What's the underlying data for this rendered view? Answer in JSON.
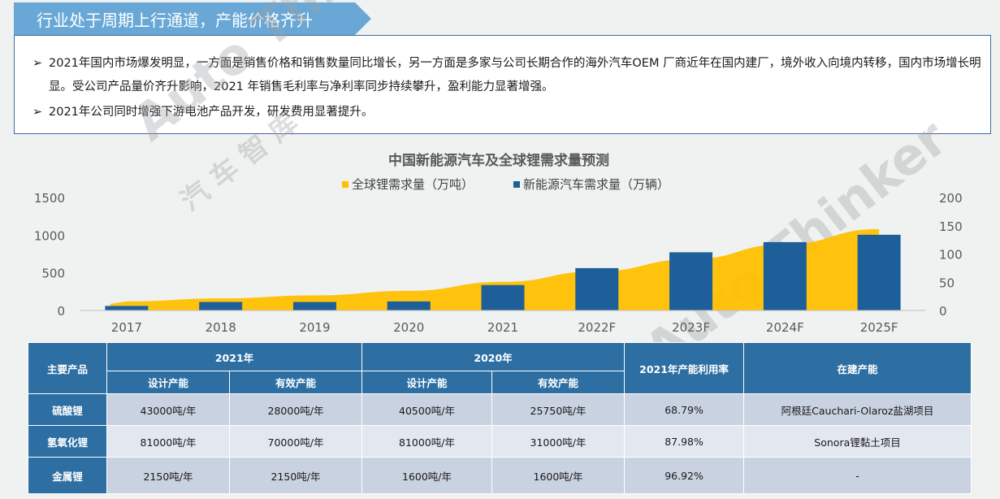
{
  "banner": {
    "title": "行业处于周期上行通道，产能价格齐升"
  },
  "bullets": [
    "2021年国内市场爆发明显，一方面是销售价格和销售数量同比增长，另一方面是多家与公司长期合作的海外汽车OEM 厂商近年在国内建厂，境外收入向境内转移，国内市场增长明显。受公司产品量价齐升影响，2021 年销售毛利率与净利率同步持续攀升，盈利能力显著增强。",
    "2021年公司同时增强下游电池产品开发，研发费用显著提升。"
  ],
  "bullet_arrow": "➢",
  "watermark": {
    "brand": "Auto Thinker",
    "cn": "汽 车 智 库"
  },
  "chart_data": {
    "type": "bar",
    "title": "中国新能源汽车及全球锂需求量预测",
    "categories": [
      "2017",
      "2018",
      "2019",
      "2020",
      "2021",
      "2022F",
      "2023F",
      "2024F",
      "2025F"
    ],
    "series": [
      {
        "name": "全球锂需求量（万吨）",
        "kind": "area",
        "axis": "left",
        "color": "#ffc000",
        "values": [
          120,
          160,
          200,
          260,
          380,
          520,
          680,
          880,
          1080
        ]
      },
      {
        "name": "新能源汽车需求量（万辆）",
        "kind": "bar",
        "axis": "right",
        "color": "#1f5f99",
        "values": [
          8,
          15,
          15,
          16,
          45,
          75,
          103,
          121,
          134
        ]
      }
    ],
    "left_axis": {
      "min": 0,
      "max": 1500,
      "ticks": [
        "0",
        "500",
        "1000",
        "1500"
      ]
    },
    "right_axis": {
      "min": 0,
      "max": 200,
      "ticks": [
        "0",
        "50",
        "100",
        "150",
        "200"
      ]
    },
    "legend_position": "top-center",
    "grid": false
  },
  "table": {
    "headers": {
      "product": "主要产品",
      "y2021": "2021年",
      "y2020": "2020年",
      "design": "设计产能",
      "effective": "有效产能",
      "utilization": "2021年产能利用率",
      "building": "在建产能"
    },
    "rows": [
      {
        "product": "硫酸锂",
        "d2021": "43000吨/年",
        "e2021": "28000吨/年",
        "d2020": "40500吨/年",
        "e2020": "25750吨/年",
        "util": "68.79%",
        "building": "阿根廷Cauchari-Olaroz盐湖项目"
      },
      {
        "product": "氢氧化锂",
        "d2021": "81000吨/年",
        "e2021": "70000吨/年",
        "d2020": "81000吨/年",
        "e2020": "31000吨/年",
        "util": "87.98%",
        "building": "Sonora锂黏土项目"
      },
      {
        "product": "金属锂",
        "d2021": "2150吨/年",
        "e2021": "2150吨/年",
        "d2020": "1600吨/年",
        "e2020": "1600吨/年",
        "util": "96.92%",
        "building": "-"
      }
    ]
  }
}
